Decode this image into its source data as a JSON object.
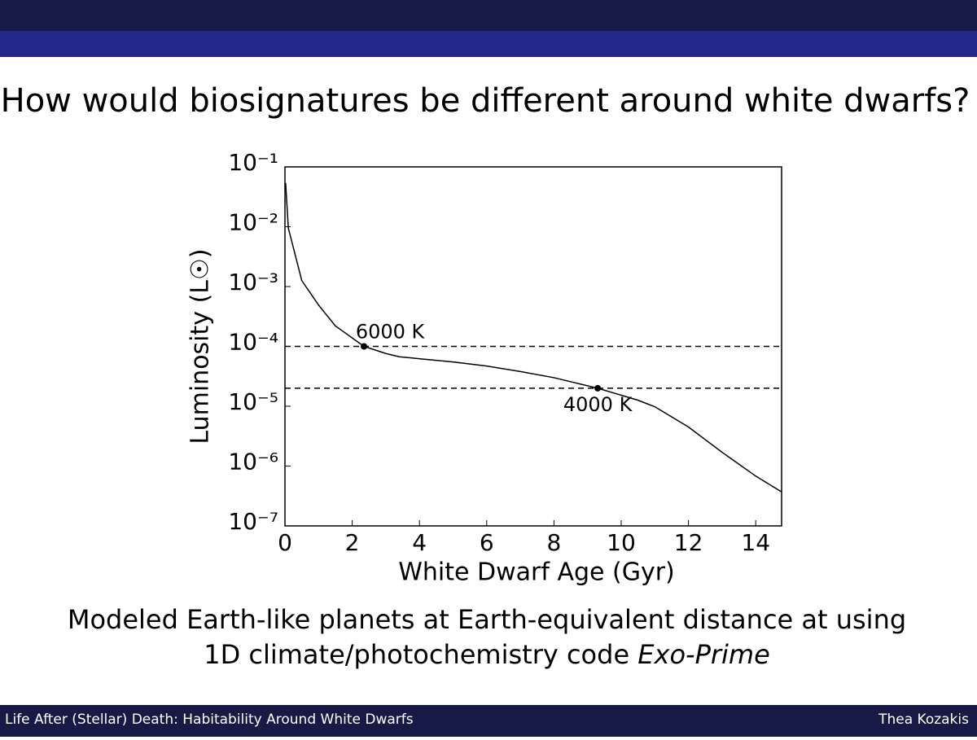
{
  "slide": {
    "title": "How would biosignatures be different around white dwarfs?",
    "caption_line1": "Modeled Earth-like planets at Earth-equivalent distance at using",
    "caption_line2": "1D climate/photochemistry code ",
    "caption_line2_italic": "Exo-Prime",
    "footer_left": "Life After (Stellar) Death: Habitability Around White Dwarfs",
    "footer_right": "Thea Kozakis"
  },
  "chart_data": {
    "type": "line",
    "xlabel": "White Dwarf Age (Gyr)",
    "ylabel": "Luminosity (L☉)",
    "x": [
      0.02,
      0.1,
      0.5,
      1,
      1.5,
      2.35,
      3,
      3.4,
      5,
      6,
      7,
      8,
      9.3,
      10.5,
      11,
      12,
      13,
      14,
      14.77
    ],
    "series": [
      {
        "color": "#000000",
        "values": [
          0.054,
          0.0095,
          0.00126,
          0.00049,
          0.00022,
          0.0001,
          7.6e-05,
          6.7e-05,
          5.5e-05,
          4.7e-05,
          3.8e-05,
          3e-05,
          2e-05,
          1.26e-05,
          9.8e-06,
          4.5e-06,
          1.7e-06,
          6.8e-07,
          3.7e-07
        ]
      }
    ],
    "hlines": [
      0.0001,
      2e-05
    ],
    "annotations": [
      {
        "text": "6000 K",
        "x": 2.35,
        "y": 0.0001
      },
      {
        "text": "4000 K",
        "x": 9.3,
        "y": 2e-05
      }
    ],
    "xlim": [
      0,
      14.77
    ],
    "xticks": [
      0,
      2,
      4,
      6,
      8,
      10,
      12,
      14
    ],
    "ylim": [
      1e-07,
      0.1
    ],
    "ylog": true,
    "yticks": [
      {
        "value": 1e-07,
        "label": "10⁻⁷"
      },
      {
        "value": 1e-06,
        "label": "10⁻⁶"
      },
      {
        "value": 1e-05,
        "label": "10⁻⁵"
      },
      {
        "value": 0.0001,
        "label": "10⁻⁴"
      },
      {
        "value": 0.001,
        "label": "10⁻³"
      },
      {
        "value": 0.01,
        "label": "10⁻²"
      },
      {
        "value": 0.1,
        "label": "10⁻¹"
      }
    ]
  }
}
